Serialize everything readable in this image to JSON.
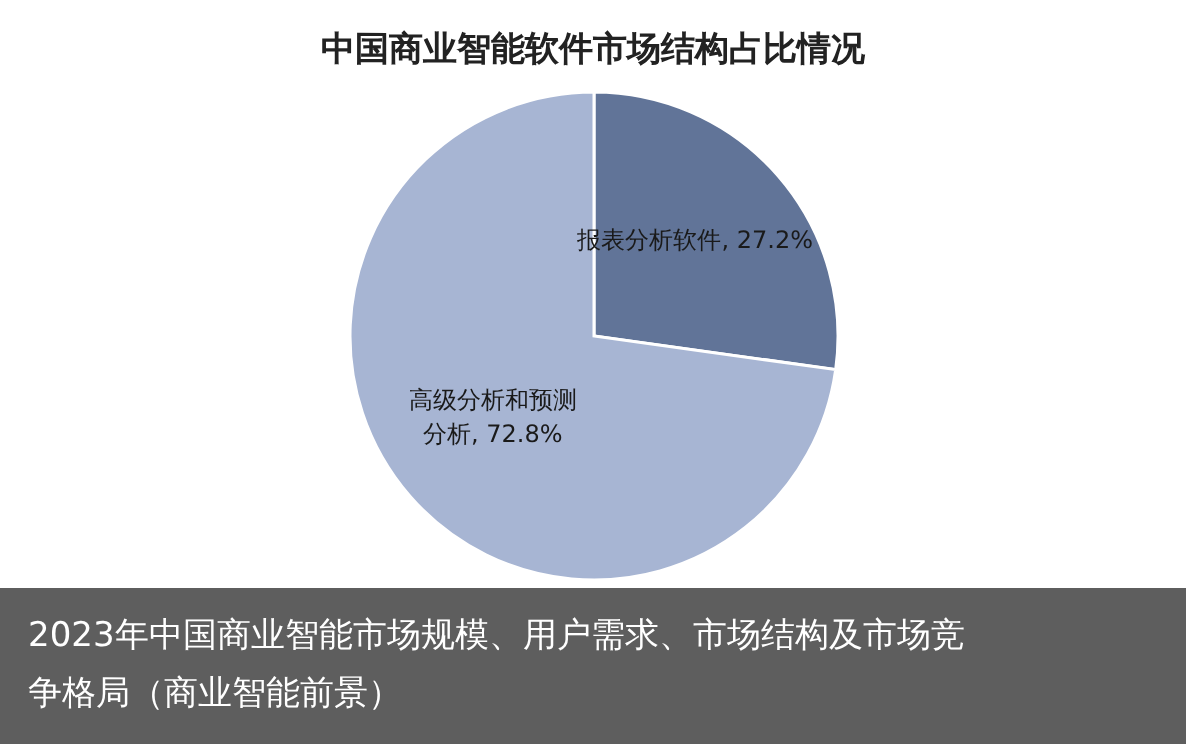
{
  "chart_data": {
    "type": "pie",
    "title": "中国商业智能软件市场结构占比情况",
    "categories": [
      "报表分析软件",
      "高级分析和预测分析"
    ],
    "values": [
      27.2,
      72.8
    ],
    "colors": [
      "#617498",
      "#a7b5d3"
    ],
    "value_labels": [
      "27.2%",
      "72.8%"
    ],
    "annotations": [
      "2023年中国商业智能市场规模、用户需求、市场结构及市场竞争格局（商业智能前景）"
    ]
  }
}
